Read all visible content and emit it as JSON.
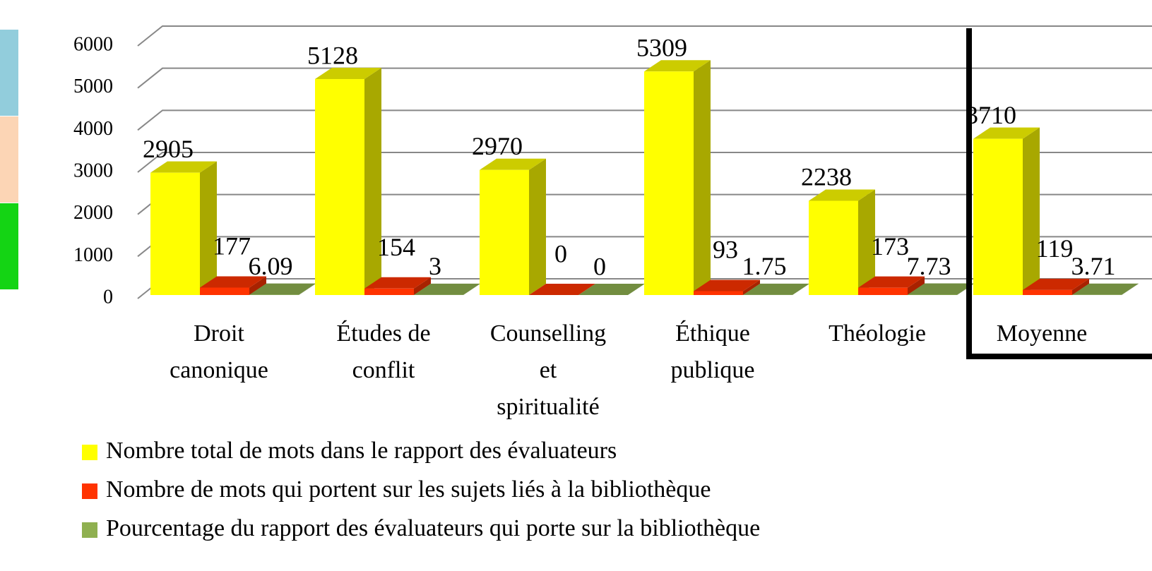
{
  "chart_data": {
    "type": "bar3d",
    "categories": [
      [
        "Droit",
        "canonique"
      ],
      [
        "Études de",
        "conflit"
      ],
      [
        "Counselling",
        "et",
        "spiritualité"
      ],
      [
        "Éthique",
        "publique"
      ],
      [
        "Théologie"
      ],
      [
        "Moyenne"
      ]
    ],
    "series": [
      {
        "name": "Nombre total de mots dans le rapport des évaluateurs",
        "color": "#ffff00",
        "values": [
          2905,
          5128,
          2970,
          5309,
          2238,
          3710
        ]
      },
      {
        "name": "Nombre de mots qui portent sur les sujets liés à la bibliothèque",
        "color": "#ff3300",
        "values": [
          177,
          154,
          0,
          93,
          173,
          119
        ]
      },
      {
        "name": "Pourcentage du rapport des évaluateurs qui porte sur la bibliothèque",
        "color": "#8fb050",
        "values": [
          6.09,
          3,
          0,
          1.75,
          7.73,
          3.71
        ]
      }
    ],
    "ylim": [
      0,
      6000
    ],
    "yticks": [
      0,
      1000,
      2000,
      3000,
      4000,
      5000,
      6000
    ],
    "grid": true
  }
}
